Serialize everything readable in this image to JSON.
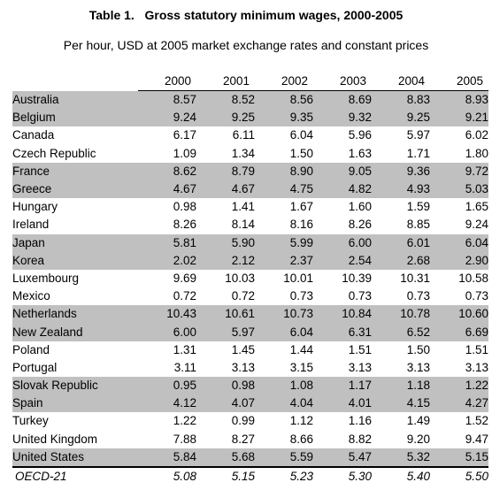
{
  "document": {
    "title": "Table 1.   Gross statutory minimum wages, 2000-2005",
    "subtitle": "Per hour, USD at 2005 market exchange rates and constant prices"
  },
  "table": {
    "header": [
      "",
      "2000",
      "2001",
      "2002",
      "2003",
      "2004",
      "2005"
    ],
    "rows": [
      {
        "country": "Australia",
        "values": [
          "8.57",
          "8.52",
          "8.56",
          "8.69",
          "8.83",
          "8.93"
        ],
        "shaded": true
      },
      {
        "country": "Belgium",
        "values": [
          "9.24",
          "9.25",
          "9.35",
          "9.32",
          "9.25",
          "9.21"
        ],
        "shaded": true
      },
      {
        "country": "Canada",
        "values": [
          "6.17",
          "6.11",
          "6.04",
          "5.96",
          "5.97",
          "6.02"
        ],
        "shaded": false
      },
      {
        "country": "Czech Republic",
        "values": [
          "1.09",
          "1.34",
          "1.50",
          "1.63",
          "1.71",
          "1.80"
        ],
        "shaded": false
      },
      {
        "country": "France",
        "values": [
          "8.62",
          "8.79",
          "8.90",
          "9.05",
          "9.36",
          "9.72"
        ],
        "shaded": true
      },
      {
        "country": "Greece",
        "values": [
          "4.67",
          "4.67",
          "4.75",
          "4.82",
          "4.93",
          "5.03"
        ],
        "shaded": true
      },
      {
        "country": "Hungary",
        "values": [
          "0.98",
          "1.41",
          "1.67",
          "1.60",
          "1.59",
          "1.65"
        ],
        "shaded": false
      },
      {
        "country": "Ireland",
        "values": [
          "8.26",
          "8.14",
          "8.16",
          "8.26",
          "8.85",
          "9.24"
        ],
        "shaded": false
      },
      {
        "country": "Japan",
        "values": [
          "5.81",
          "5.90",
          "5.99",
          "6.00",
          "6.01",
          "6.04"
        ],
        "shaded": true
      },
      {
        "country": "Korea",
        "values": [
          "2.02",
          "2.12",
          "2.37",
          "2.54",
          "2.68",
          "2.90"
        ],
        "shaded": true
      },
      {
        "country": "Luxembourg",
        "values": [
          "9.69",
          "10.03",
          "10.01",
          "10.39",
          "10.31",
          "10.58"
        ],
        "shaded": false
      },
      {
        "country": "Mexico",
        "values": [
          "0.72",
          "0.72",
          "0.73",
          "0.73",
          "0.73",
          "0.73"
        ],
        "shaded": false
      },
      {
        "country": "Netherlands",
        "values": [
          "10.43",
          "10.61",
          "10.73",
          "10.84",
          "10.78",
          "10.60"
        ],
        "shaded": true
      },
      {
        "country": "New Zealand",
        "values": [
          "6.00",
          "5.97",
          "6.04",
          "6.31",
          "6.52",
          "6.69"
        ],
        "shaded": true
      },
      {
        "country": "Poland",
        "values": [
          "1.31",
          "1.45",
          "1.44",
          "1.51",
          "1.50",
          "1.51"
        ],
        "shaded": false
      },
      {
        "country": "Portugal",
        "values": [
          "3.11",
          "3.13",
          "3.15",
          "3.13",
          "3.13",
          "3.13"
        ],
        "shaded": false
      },
      {
        "country": "Slovak Republic",
        "values": [
          "0.95",
          "0.98",
          "1.08",
          "1.17",
          "1.18",
          "1.22"
        ],
        "shaded": true
      },
      {
        "country": "Spain",
        "values": [
          "4.12",
          "4.07",
          "4.04",
          "4.01",
          "4.15",
          "4.27"
        ],
        "shaded": true
      },
      {
        "country": "Turkey",
        "values": [
          "1.22",
          "0.99",
          "1.12",
          "1.16",
          "1.49",
          "1.52"
        ],
        "shaded": false
      },
      {
        "country": "United Kingdom",
        "values": [
          "7.88",
          "8.27",
          "8.66",
          "8.82",
          "9.20",
          "9.47"
        ],
        "shaded": false
      },
      {
        "country": "United States",
        "values": [
          "5.84",
          "5.68",
          "5.59",
          "5.47",
          "5.32",
          "5.15"
        ],
        "shaded": true
      }
    ],
    "average": {
      "country": "OECD-21",
      "values": [
        "5.08",
        "5.15",
        "5.23",
        "5.30",
        "5.40",
        "5.50"
      ]
    }
  }
}
